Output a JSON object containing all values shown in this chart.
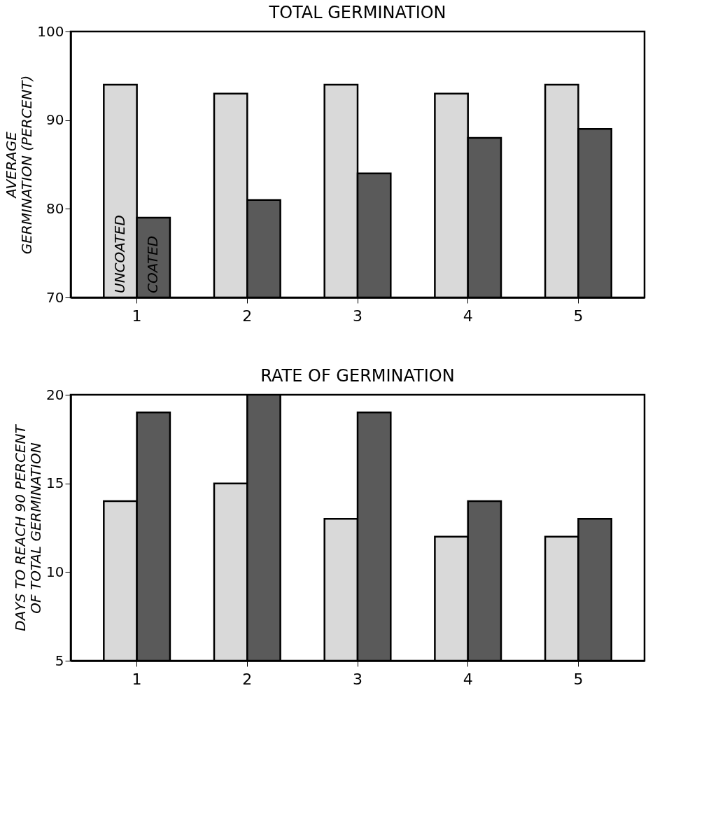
{
  "chart_data": [
    {
      "type": "bar",
      "title": "TOTAL GERMINATION",
      "ylabel": "AVERAGE\nGERMINATION (PERCENT)",
      "categories": [
        "1",
        "2",
        "3",
        "4",
        "5"
      ],
      "series": [
        {
          "name": "UNCOATED",
          "color": "#d9d9d9",
          "values": [
            94,
            93,
            94,
            93,
            94
          ]
        },
        {
          "name": "COATED",
          "color": "#5a5a5a",
          "values": [
            79,
            81,
            84,
            88,
            89
          ]
        }
      ],
      "ylim": [
        70,
        100
      ],
      "yticks": [
        70,
        80,
        90,
        100
      ]
    },
    {
      "type": "bar",
      "title": "RATE OF GERMINATION",
      "ylabel": "DAYS TO REACH 90 PERCENT\nOF TOTAL GERMINATION",
      "categories": [
        "1",
        "2",
        "3",
        "4",
        "5"
      ],
      "series": [
        {
          "color": "#d9d9d9",
          "values": [
            14,
            15,
            13,
            12,
            12
          ]
        },
        {
          "color": "#5a5a5a",
          "values": [
            19,
            20,
            19,
            14,
            13
          ]
        }
      ],
      "ylim": [
        5,
        20
      ],
      "yticks": [
        5,
        10,
        15,
        20
      ]
    }
  ]
}
